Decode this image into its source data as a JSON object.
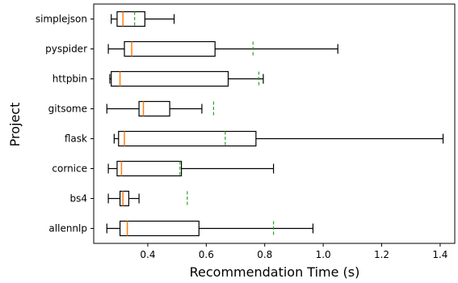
{
  "chart_data": {
    "type": "boxplot",
    "orientation": "horizontal",
    "xlabel": "Recommendation Time (s)",
    "ylabel": "Project",
    "xlim": [
      0.215,
      1.45
    ],
    "x_ticks": [
      0.4,
      0.6,
      0.8,
      1.0,
      1.2,
      1.4
    ],
    "x_tick_labels": [
      "0.4",
      "0.6",
      "0.8",
      "1.0",
      "1.2",
      "1.4"
    ],
    "grid": false,
    "legend": "none",
    "colors": {
      "box": "#000000",
      "median": "#ff7f0e",
      "mean": "#2ca02c"
    },
    "series": [
      {
        "name": "simplejson",
        "whisker_low": 0.275,
        "q1": 0.295,
        "median": 0.315,
        "q3": 0.39,
        "whisker_high": 0.49,
        "mean": 0.355
      },
      {
        "name": "pyspider",
        "whisker_low": 0.265,
        "q1": 0.32,
        "median": 0.345,
        "q3": 0.63,
        "whisker_high": 1.05,
        "mean": 0.76
      },
      {
        "name": "httpbin",
        "whisker_low": 0.27,
        "q1": 0.275,
        "median": 0.305,
        "q3": 0.675,
        "whisker_high": 0.795,
        "mean": 0.78
      },
      {
        "name": "gitsome",
        "whisker_low": 0.26,
        "q1": 0.37,
        "median": 0.385,
        "q3": 0.475,
        "whisker_high": 0.585,
        "mean": 0.625
      },
      {
        "name": "flask",
        "whisker_low": 0.285,
        "q1": 0.3,
        "median": 0.32,
        "q3": 0.77,
        "whisker_high": 1.41,
        "mean": 0.665
      },
      {
        "name": "cornice",
        "whisker_low": 0.265,
        "q1": 0.295,
        "median": 0.31,
        "q3": 0.515,
        "whisker_high": 0.83,
        "mean": 0.51
      },
      {
        "name": "bs4",
        "whisker_low": 0.265,
        "q1": 0.305,
        "median": 0.315,
        "q3": 0.335,
        "whisker_high": 0.37,
        "mean": 0.535
      },
      {
        "name": "allennlp",
        "whisker_low": 0.26,
        "q1": 0.305,
        "median": 0.33,
        "q3": 0.575,
        "whisker_high": 0.965,
        "mean": 0.83
      }
    ]
  }
}
